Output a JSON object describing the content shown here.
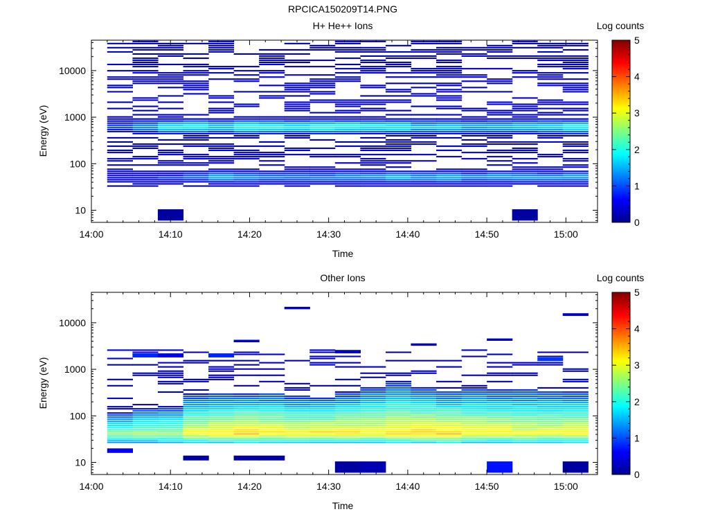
{
  "figure_title": "RPCICA150209T14.PNG",
  "chart_data": [
    {
      "type": "heatmap",
      "title": "H+ He++ Ions",
      "xlabel": "Time",
      "ylabel": "Energy (eV)",
      "x_ticks": [
        "14:00",
        "14:10",
        "14:20",
        "14:30",
        "14:40",
        "14:50",
        "15:00"
      ],
      "x_range_min": [
        0,
        64
      ],
      "y_scale": "log",
      "y_ticks": [
        10,
        100,
        1000,
        10000
      ],
      "y_tick_labels": [
        "10",
        "100",
        "1000",
        "10000"
      ],
      "y_range": [
        5.5,
        45000
      ],
      "colorbar": {
        "label": "Log counts",
        "range": [
          0,
          5
        ],
        "ticks": [
          "0",
          "1",
          "2",
          "3",
          "4",
          "5"
        ]
      },
      "time_bins_start_min": [
        2,
        5.2,
        8.4,
        11.6,
        14.8,
        18,
        21.2,
        24.4,
        27.6,
        30.8,
        34,
        37.2,
        40.4,
        43.6,
        46.8,
        50,
        53.2,
        56.4,
        59.6
      ],
      "bin_width_min": 3.2,
      "low_cutoff_ev": 30,
      "high_cutoff_ev": 42000,
      "peak_bands": [
        {
          "center_ev": 600,
          "width_dec": 0.12,
          "peak_log": [
            0.9,
            1.3,
            1.8,
            1.9,
            1.6,
            2.0,
            2.0,
            1.8,
            2.0,
            2.0,
            1.9,
            1.9,
            1.6,
            1.7,
            1.5,
            1.5,
            1.7,
            1.7,
            2.0
          ]
        },
        {
          "center_ev": 50,
          "width_dec": 0.1,
          "peak_log": [
            0.6,
            0.7,
            0.8,
            1.1,
            1.5,
            1.3,
            1.2,
            1.1,
            1.2,
            1.3,
            1.4,
            1.5,
            1.4,
            1.5,
            1.2,
            1.4,
            1.4,
            1.3,
            1.4
          ]
        }
      ],
      "sparse_density": 0.45,
      "isolated_cells": [
        {
          "bin": 2,
          "ev_low": 6,
          "ev_high": 10.5,
          "log": 0.1
        },
        {
          "bin": 16,
          "ev_low": 6,
          "ev_high": 10.5,
          "log": 0.1
        }
      ]
    },
    {
      "type": "heatmap",
      "title": "Other Ions",
      "xlabel": "Time",
      "ylabel": "Energy (eV)",
      "x_ticks": [
        "14:00",
        "14:10",
        "14:20",
        "14:30",
        "14:40",
        "14:50",
        "15:00"
      ],
      "x_range_min": [
        0,
        64
      ],
      "y_scale": "log",
      "y_ticks": [
        10,
        100,
        1000,
        10000
      ],
      "y_tick_labels": [
        "10",
        "100",
        "1000",
        "10000"
      ],
      "y_range": [
        5.5,
        45000
      ],
      "colorbar": {
        "label": "Log counts",
        "range": [
          0,
          5
        ],
        "ticks": [
          "0",
          "1",
          "2",
          "3",
          "4",
          "5"
        ]
      },
      "time_bins_start_min": [
        2,
        5.2,
        8.4,
        11.6,
        14.8,
        18,
        21.2,
        24.4,
        27.6,
        30.8,
        34,
        37.2,
        40.4,
        43.6,
        46.8,
        50,
        53.2,
        56.4,
        59.6
      ],
      "bin_width_min": 3.2,
      "band_low_ev": 24,
      "band_high_ev": [
        110,
        140,
        150,
        280,
        300,
        300,
        300,
        260,
        250,
        300,
        400,
        480,
        400,
        320,
        380,
        350,
        350,
        330,
        330
      ],
      "band_peak_log": [
        2.5,
        2.6,
        2.7,
        3.2,
        3.3,
        3.4,
        3.3,
        3.2,
        3.3,
        3.3,
        3.2,
        3.3,
        3.4,
        3.5,
        3.2,
        3.2,
        3.1,
        3.1,
        3.2
      ],
      "band_peak_ev": 40,
      "sparse_density": 0.28,
      "sparse_max_ev": 2500,
      "isolated_cells": [
        {
          "bin": 7,
          "ev_low": 19500,
          "ev_high": 22000,
          "log": 0.3
        },
        {
          "bin": 9,
          "ev_low": 2200,
          "ev_high": 2600,
          "log": 0.3
        },
        {
          "bin": 18,
          "ev_low": 14000,
          "ev_high": 16000,
          "log": 0.3
        },
        {
          "bin": 15,
          "ev_low": 4100,
          "ev_high": 4600,
          "log": 0.3
        },
        {
          "bin": 5,
          "ev_low": 3800,
          "ev_high": 4300,
          "log": 0.3
        },
        {
          "bin": 12,
          "ev_low": 3200,
          "ev_high": 3600,
          "log": 0.3
        },
        {
          "bin": 17,
          "ev_low": 1500,
          "ev_high": 1800,
          "log": 0.9
        },
        {
          "bin": 4,
          "ev_low": 1800,
          "ev_high": 2200,
          "log": 0.8
        },
        {
          "bin": 1,
          "ev_low": 1800,
          "ev_high": 2200,
          "log": 0.8
        },
        {
          "bin": 2,
          "ev_low": 1800,
          "ev_high": 2200,
          "log": 0.5
        },
        {
          "bin": 3,
          "ev_low": 11,
          "ev_high": 14,
          "log": 0.1
        },
        {
          "bin": 5,
          "ev_low": 11,
          "ev_high": 14,
          "log": 0.1
        },
        {
          "bin": 6,
          "ev_low": 11,
          "ev_high": 14,
          "log": 0.1
        },
        {
          "bin": 0,
          "ev_low": 16,
          "ev_high": 20,
          "log": 0.6
        },
        {
          "bin": 9,
          "ev_low": 6,
          "ev_high": 10.5,
          "log": 0.1
        },
        {
          "bin": 10,
          "ev_low": 6,
          "ev_high": 10.5,
          "log": 0.2
        },
        {
          "bin": 15,
          "ev_low": 6,
          "ev_high": 10.5,
          "log": 0.7
        },
        {
          "bin": 18,
          "ev_low": 6,
          "ev_high": 10.5,
          "log": 0.1
        }
      ]
    }
  ]
}
